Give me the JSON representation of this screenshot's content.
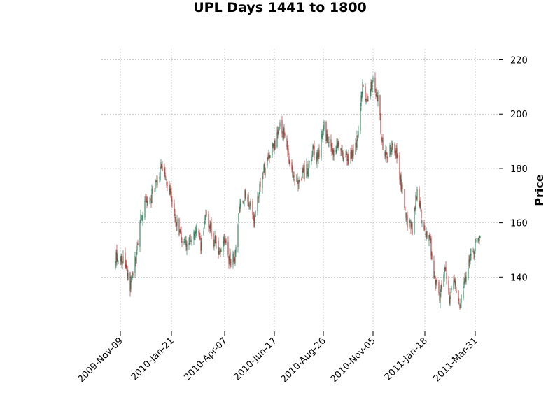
{
  "chart_data": {
    "type": "candlestick",
    "title": "UPL Days 1441 to 1800",
    "ylabel": "Price",
    "xlabel": "",
    "ylim": [
      120,
      224
    ],
    "yticks": [
      140,
      160,
      180,
      200,
      220
    ],
    "grid": true,
    "y_axis_side": "right",
    "colors": {
      "up": "#2e7d5b",
      "down": "#b03a3a",
      "grid": "#b0b0b0"
    },
    "date_range": [
      "2009-Nov-02",
      "2011-Apr-07"
    ],
    "xticks": [
      {
        "date": "2009-Nov-09",
        "label": "2009-Nov-09"
      },
      {
        "date": "2010-Jan-21",
        "label": "2010-Jan-21"
      },
      {
        "date": "2010-Apr-07",
        "label": "2010-Apr-07"
      },
      {
        "date": "2010-Jun-17",
        "label": "2010-Jun-17"
      },
      {
        "date": "2010-Aug-26",
        "label": "2010-Aug-26"
      },
      {
        "date": "2010-Nov-05",
        "label": "2010-Nov-05"
      },
      {
        "date": "2011-Jan-18",
        "label": "2011-Jan-18"
      },
      {
        "date": "2011-Mar-31",
        "label": "2011-Mar-31"
      }
    ],
    "close_path": [
      {
        "date": "2009-Nov-02",
        "close": 147
      },
      {
        "date": "2009-Nov-09",
        "close": 147
      },
      {
        "date": "2009-Nov-16",
        "close": 144
      },
      {
        "date": "2009-Nov-23",
        "close": 136
      },
      {
        "date": "2009-Nov-30",
        "close": 146
      },
      {
        "date": "2009-Dec-07",
        "close": 160
      },
      {
        "date": "2009-Dec-14",
        "close": 166
      },
      {
        "date": "2009-Dec-21",
        "close": 168
      },
      {
        "date": "2009-Dec-31",
        "close": 175
      },
      {
        "date": "2010-Jan-07",
        "close": 182
      },
      {
        "date": "2010-Jan-14",
        "close": 176
      },
      {
        "date": "2010-Jan-21",
        "close": 168
      },
      {
        "date": "2010-Jan-28",
        "close": 160
      },
      {
        "date": "2010-Feb-04",
        "close": 154
      },
      {
        "date": "2010-Feb-11",
        "close": 152
      },
      {
        "date": "2010-Feb-18",
        "close": 155
      },
      {
        "date": "2010-Feb-25",
        "close": 157
      },
      {
        "date": "2010-Mar-04",
        "close": 152
      },
      {
        "date": "2010-Mar-11",
        "close": 162
      },
      {
        "date": "2010-Mar-18",
        "close": 158
      },
      {
        "date": "2010-Mar-25",
        "close": 152
      },
      {
        "date": "2010-Apr-01",
        "close": 150
      },
      {
        "date": "2010-Apr-07",
        "close": 154
      },
      {
        "date": "2010-Apr-14",
        "close": 146
      },
      {
        "date": "2010-Apr-21",
        "close": 146
      },
      {
        "date": "2010-Apr-28",
        "close": 165
      },
      {
        "date": "2010-May-05",
        "close": 170
      },
      {
        "date": "2010-May-12",
        "close": 168
      },
      {
        "date": "2010-May-19",
        "close": 161
      },
      {
        "date": "2010-May-26",
        "close": 172
      },
      {
        "date": "2010-Jun-02",
        "close": 180
      },
      {
        "date": "2010-Jun-09",
        "close": 185
      },
      {
        "date": "2010-Jun-17",
        "close": 188
      },
      {
        "date": "2010-Jun-24",
        "close": 195
      },
      {
        "date": "2010-Jul-01",
        "close": 192
      },
      {
        "date": "2010-Jul-08",
        "close": 183
      },
      {
        "date": "2010-Jul-15",
        "close": 176
      },
      {
        "date": "2010-Jul-22",
        "close": 175
      },
      {
        "date": "2010-Jul-29",
        "close": 178
      },
      {
        "date": "2010-Aug-05",
        "close": 181
      },
      {
        "date": "2010-Aug-12",
        "close": 187
      },
      {
        "date": "2010-Aug-19",
        "close": 185
      },
      {
        "date": "2010-Aug-26",
        "close": 196
      },
      {
        "date": "2010-Sep-02",
        "close": 190
      },
      {
        "date": "2010-Sep-09",
        "close": 186
      },
      {
        "date": "2010-Sep-16",
        "close": 188
      },
      {
        "date": "2010-Sep-23",
        "close": 186
      },
      {
        "date": "2010-Sep-30",
        "close": 184
      },
      {
        "date": "2010-Oct-07",
        "close": 185
      },
      {
        "date": "2010-Oct-14",
        "close": 192
      },
      {
        "date": "2010-Oct-21",
        "close": 210
      },
      {
        "date": "2010-Oct-28",
        "close": 206
      },
      {
        "date": "2010-Nov-05",
        "close": 213
      },
      {
        "date": "2010-Nov-12",
        "close": 205
      },
      {
        "date": "2010-Nov-19",
        "close": 187
      },
      {
        "date": "2010-Nov-26",
        "close": 185
      },
      {
        "date": "2010-Dec-03",
        "close": 191
      },
      {
        "date": "2010-Dec-10",
        "close": 184
      },
      {
        "date": "2010-Dec-17",
        "close": 170
      },
      {
        "date": "2010-Dec-24",
        "close": 160
      },
      {
        "date": "2010-Dec-31",
        "close": 158
      },
      {
        "date": "2011-Jan-07",
        "close": 172
      },
      {
        "date": "2011-Jan-14",
        "close": 160
      },
      {
        "date": "2011-Jan-18",
        "close": 155
      },
      {
        "date": "2011-Jan-25",
        "close": 154
      },
      {
        "date": "2011-Feb-01",
        "close": 140
      },
      {
        "date": "2011-Feb-08",
        "close": 133
      },
      {
        "date": "2011-Feb-15",
        "close": 144
      },
      {
        "date": "2011-Feb-22",
        "close": 130
      },
      {
        "date": "2011-Mar-01",
        "close": 140
      },
      {
        "date": "2011-Mar-08",
        "close": 129
      },
      {
        "date": "2011-Mar-15",
        "close": 136
      },
      {
        "date": "2011-Mar-22",
        "close": 146
      },
      {
        "date": "2011-Mar-31",
        "close": 151
      },
      {
        "date": "2011-Apr-07",
        "close": 153
      }
    ]
  }
}
